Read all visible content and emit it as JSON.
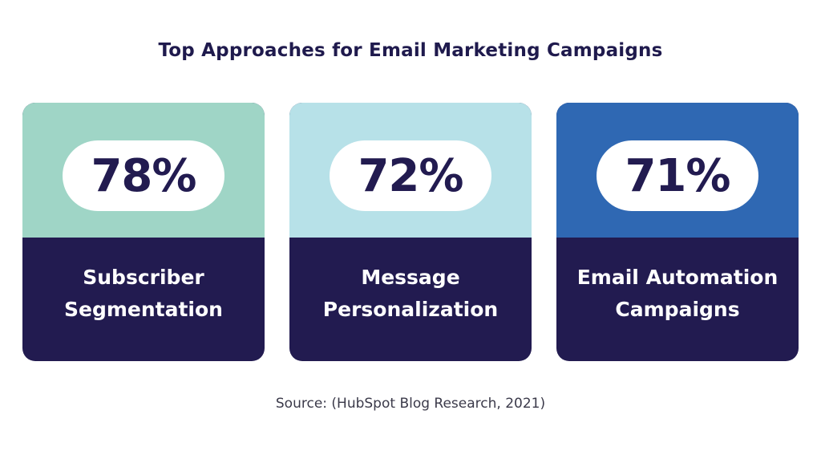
{
  "chart_data": {
    "type": "bar",
    "title": "Top Approaches for Email Marketing Campaigns",
    "categories": [
      "Subscriber\nSegmentation",
      "Message\nPersonalization",
      "Email Automation\nCampaigns"
    ],
    "values": [
      78,
      72,
      71
    ],
    "value_labels": [
      "78%",
      "72%",
      "71%"
    ],
    "colors": [
      "#9fd5c6",
      "#b7e1e8",
      "#2f68b3"
    ],
    "label_background": "#221b50",
    "source": "Source: (HubSpot Blog Research, 2021)"
  }
}
